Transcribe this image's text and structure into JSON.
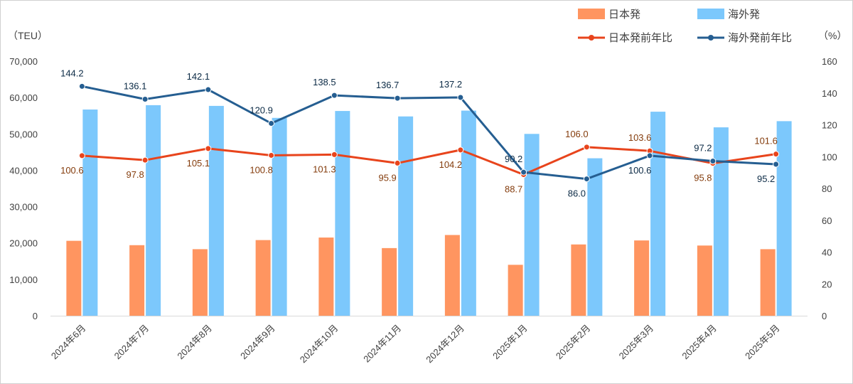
{
  "chart_data": {
    "type": "bar",
    "title": "",
    "categories": [
      "2024年6月",
      "2024年7月",
      "2024年8月",
      "2024年9月",
      "2024年10月",
      "2024年11月",
      "2024年12月",
      "2025年1月",
      "2025年2月",
      "2025年3月",
      "2025年4月",
      "2025年5月"
    ],
    "left_axis": {
      "unit": "（TEU）",
      "ylim": [
        0,
        70000
      ],
      "ticks": [
        "0",
        "10,000",
        "20,000",
        "30,000",
        "40,000",
        "50,000",
        "60,000",
        "70,000"
      ]
    },
    "right_axis": {
      "unit": "（%）",
      "ylim": [
        0,
        160
      ],
      "ticks": [
        "0",
        "20",
        "40",
        "60",
        "80",
        "100",
        "120",
        "140",
        "160"
      ]
    },
    "bar_series": [
      {
        "name": "日本発",
        "color": "#FF9560",
        "values": [
          20600,
          19400,
          18300,
          20800,
          21500,
          18600,
          22200,
          14000,
          19600,
          20700,
          19300,
          18300
        ]
      },
      {
        "name": "海外発",
        "color": "#7CC8FC",
        "values": [
          56700,
          57900,
          57700,
          54400,
          56300,
          54800,
          56400,
          50000,
          43300,
          56100,
          51800,
          53500
        ]
      }
    ],
    "line_series": [
      {
        "name": "日本発前年比",
        "color": "#E8441C",
        "label_color": "#843C0C",
        "values": [
          100.6,
          97.8,
          105.1,
          100.8,
          101.3,
          95.9,
          104.2,
          88.7,
          106.0,
          103.6,
          95.8,
          101.6
        ]
      },
      {
        "name": "海外発前年比",
        "color": "#255E91",
        "label_color": "#0B2A45",
        "values": [
          144.2,
          136.1,
          142.1,
          120.9,
          138.5,
          136.7,
          137.2,
          90.2,
          86.0,
          100.6,
          97.2,
          95.2
        ]
      }
    ],
    "legend_position": "top-right",
    "grid": false
  }
}
